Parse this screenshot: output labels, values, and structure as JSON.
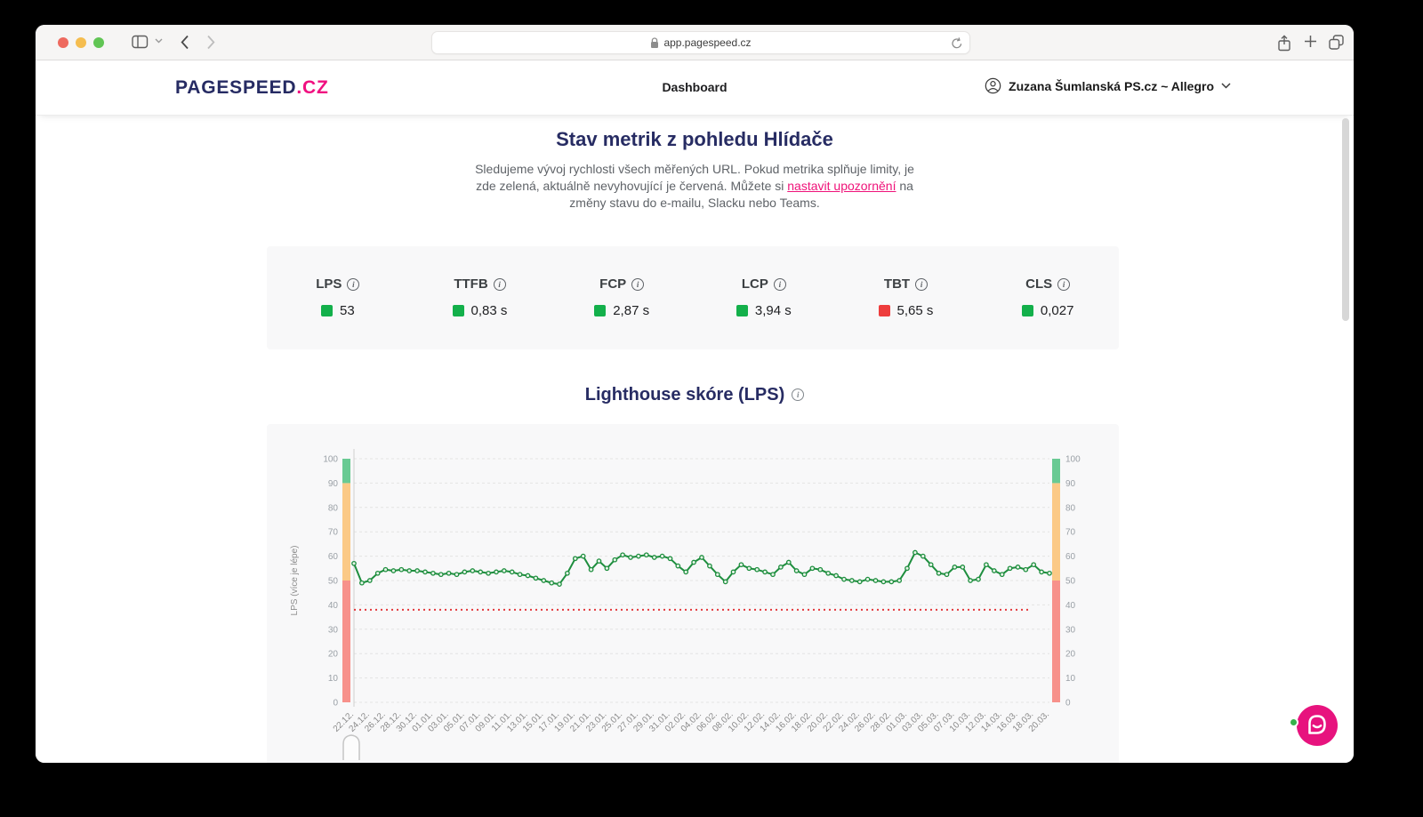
{
  "browser": {
    "address": "app.pagespeed.cz"
  },
  "header": {
    "logo_primary": "PAGESPEED",
    "logo_suffix": ".CZ",
    "nav_title": "Dashboard",
    "account": "Zuzana Šumlanská PS.cz ~ Allegro"
  },
  "intro": {
    "title": "Stav metrik z pohledu Hlídače",
    "line1": "Sledujeme vývoj rychlosti všech měřených URL. Pokud metrika splňuje limity, je",
    "line2_pre": "zde zelená, aktuálně nevyhovující je červená. Můžete si ",
    "link": "nastavit upozornění",
    "line2_post": " na",
    "line3": "změny stavu do e-mailu, Slacku nebo Teams."
  },
  "metrics": [
    {
      "label": "LPS",
      "value": "53",
      "status": "green"
    },
    {
      "label": "TTFB",
      "value": "0,83 s",
      "status": "green"
    },
    {
      "label": "FCP",
      "value": "2,87 s",
      "status": "green"
    },
    {
      "label": "LCP",
      "value": "3,94 s",
      "status": "green"
    },
    {
      "label": "TBT",
      "value": "5,65 s",
      "status": "red"
    },
    {
      "label": "CLS",
      "value": "0,027",
      "status": "green"
    }
  ],
  "chart_section": {
    "title": "Lighthouse skóre (LPS)"
  },
  "colors": {
    "brand_navy": "#262b63",
    "brand_pink": "#f01080",
    "status_green": "#13b04b",
    "status_red": "#ee3d3d"
  },
  "chart_data": {
    "type": "line",
    "title": "Lighthouse skóre (LPS)",
    "ylabel": "LPS (více je lépe)",
    "ylim": [
      0,
      100
    ],
    "grid": true,
    "legend": "none",
    "y_ticks": [
      0,
      10,
      20,
      30,
      40,
      50,
      60,
      70,
      80,
      90,
      100
    ],
    "x_tick_labels": [
      "22.12.",
      "24.12.",
      "26.12.",
      "28.12.",
      "30.12.",
      "01.01.",
      "03.01.",
      "05.01.",
      "07.01.",
      "09.01.",
      "11.01.",
      "13.01.",
      "15.01.",
      "17.01.",
      "19.01.",
      "21.01.",
      "23.01.",
      "25.01.",
      "27.01.",
      "29.01.",
      "31.01.",
      "02.02.",
      "04.02.",
      "06.02.",
      "08.02.",
      "10.02.",
      "12.02.",
      "14.02.",
      "16.02.",
      "18.02.",
      "20.02.",
      "22.02.",
      "24.02.",
      "26.02.",
      "28.02.",
      "01.03.",
      "03.03.",
      "05.03.",
      "07.03.",
      "10.03.",
      "12.03.",
      "14.03.",
      "16.03.",
      "18.03.",
      "20.03."
    ],
    "series": [
      {
        "name": "LPS",
        "color": "#1e8e3e",
        "values": [
          57,
          49,
          50,
          53,
          54.5,
          54,
          54.5,
          54,
          54,
          53.5,
          53,
          52.5,
          53,
          52.5,
          53.5,
          54,
          53.5,
          53,
          53.5,
          54,
          53.5,
          52.5,
          52,
          51,
          50,
          49,
          48.5,
          53,
          59,
          60,
          54.5,
          58,
          55,
          58.5,
          60.5,
          59.5,
          60,
          60.5,
          59.5,
          60,
          59,
          56,
          53.5,
          57.5,
          59.5,
          56,
          52.5,
          49.5,
          53.5,
          56.5,
          55,
          54.5,
          53.5,
          52.5,
          55.5,
          57.5,
          54,
          52.5,
          55,
          54.5,
          53,
          52,
          50.5,
          50,
          49.5,
          50.5,
          50,
          49.5,
          49.5,
          50,
          55,
          61.5,
          60,
          56.5,
          53,
          52.5,
          55.5,
          55.5,
          50,
          50.5,
          56.5,
          54,
          52.5,
          55,
          55.5,
          54.5,
          56.5,
          53.5,
          53
        ]
      }
    ],
    "threshold": {
      "value": 38,
      "color": "#e4393c",
      "style": "dotted"
    },
    "bands": [
      {
        "from": 0,
        "to": 50,
        "color": "#f7918b"
      },
      {
        "from": 50,
        "to": 90,
        "color": "#fbc986"
      },
      {
        "from": 90,
        "to": 100,
        "color": "#69ca93"
      }
    ]
  }
}
